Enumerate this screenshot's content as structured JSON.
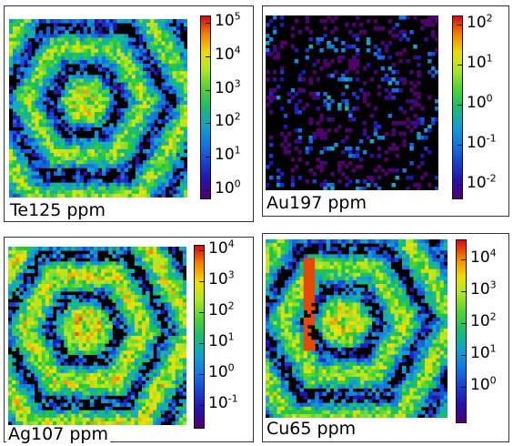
{
  "panels": [
    {
      "id": "te",
      "label": "Te125 ppm",
      "scale_exponents": [
        "0",
        "1",
        "2",
        "3",
        "4",
        "5"
      ],
      "seed": 11,
      "base": 0.42
    },
    {
      "id": "au",
      "label": "Au197 ppm",
      "scale_exponents": [
        "-2",
        "-1",
        "0",
        "1",
        "2"
      ],
      "seed": 23,
      "base": 0.05
    },
    {
      "id": "ag",
      "label": "Ag107 ppm",
      "scale_exponents": [
        "-1",
        "0",
        "1",
        "2",
        "3",
        "4"
      ],
      "seed": 37,
      "base": 0.5
    },
    {
      "id": "cu",
      "label": "Cu65 ppm",
      "scale_exponents": [
        "0",
        "1",
        "2",
        "3",
        "4"
      ],
      "seed": 53,
      "base": 0.45
    }
  ],
  "colors": {
    "background": "#ffffff",
    "border": "#333333",
    "no_data": "#000000"
  }
}
